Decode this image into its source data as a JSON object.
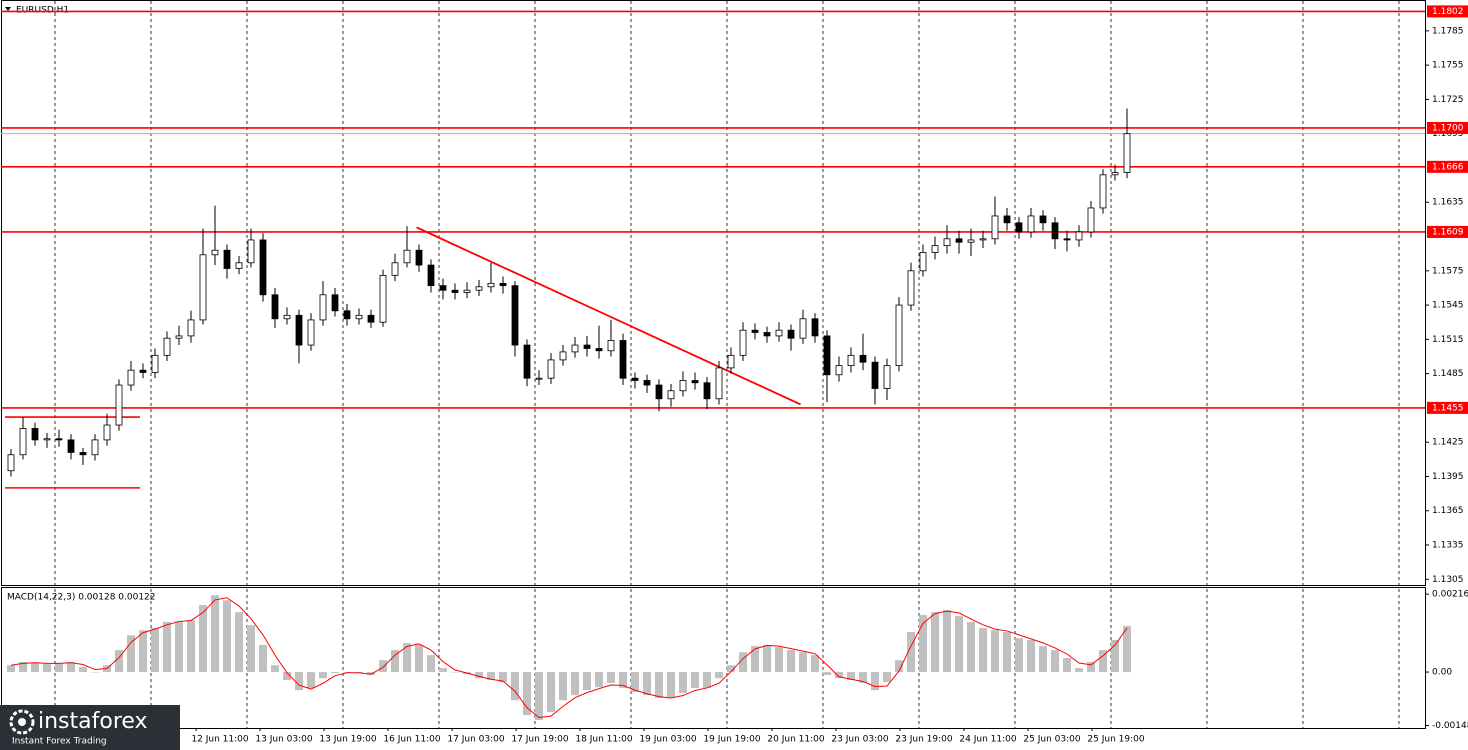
{
  "chart_data": [
    {
      "type": "candlestick",
      "title": "EURUSD,H1",
      "candle_color": "#000000",
      "up_fill": "#ffffff",
      "down_fill": "#000000",
      "open": [
        1.14,
        1.1414,
        1.1437,
        1.1427,
        1.1428,
        1.1427,
        1.1416,
        1.1414,
        1.1427,
        1.144,
        1.1475,
        1.1488,
        1.1486,
        1.1501,
        1.1516,
        1.1518,
        1.1532,
        1.1589,
        1.1593,
        1.1577,
        1.1582,
        1.1602,
        1.1554,
        1.1533,
        1.1536,
        1.151,
        1.1532,
        1.1554,
        1.154,
        1.1533,
        1.1536,
        1.153,
        1.1571,
        1.1582,
        1.1593,
        1.158,
        1.1562,
        1.1558,
        1.1556,
        1.1558,
        1.1561,
        1.1564,
        1.1562,
        1.151,
        1.1481,
        1.1481,
        1.1497,
        1.1504,
        1.151,
        1.1507,
        1.1505,
        1.1514,
        1.1481,
        1.1479,
        1.1475,
        1.1463,
        1.147,
        1.1479,
        1.1477,
        1.1463,
        1.149,
        1.1501,
        1.1523,
        1.1521,
        1.1518,
        1.1523,
        1.1516,
        1.1533,
        1.1518,
        1.1484,
        1.1492,
        1.1501,
        1.1495,
        1.1472,
        1.1492,
        1.1545,
        1.1575,
        1.1591,
        1.1597,
        1.1603,
        1.16,
        1.1602,
        1.1603,
        1.1623,
        1.1617,
        1.1609,
        1.1623,
        1.1617,
        1.1603,
        1.1602,
        1.1609,
        1.163,
        1.1659,
        1.1661
      ],
      "high": [
        1.1419,
        1.1447,
        1.1442,
        1.1433,
        1.1436,
        1.1432,
        1.142,
        1.1432,
        1.145,
        1.148,
        1.1496,
        1.1494,
        1.1507,
        1.1522,
        1.1527,
        1.154,
        1.1612,
        1.1632,
        1.1598,
        1.1588,
        1.1612,
        1.1608,
        1.156,
        1.1543,
        1.1541,
        1.1538,
        1.1566,
        1.156,
        1.1546,
        1.1542,
        1.1541,
        1.1576,
        1.159,
        1.1614,
        1.1598,
        1.1585,
        1.1568,
        1.1564,
        1.1565,
        1.1567,
        1.1582,
        1.157,
        1.1566,
        1.1515,
        1.1488,
        1.1503,
        1.151,
        1.1517,
        1.1518,
        1.1527,
        1.1532,
        1.152,
        1.1486,
        1.1484,
        1.148,
        1.1476,
        1.1487,
        1.1486,
        1.1482,
        1.1496,
        1.1508,
        1.153,
        1.1529,
        1.1526,
        1.153,
        1.1528,
        1.1541,
        1.1538,
        1.1523,
        1.15,
        1.1508,
        1.152,
        1.15,
        1.1498,
        1.1552,
        1.1582,
        1.1598,
        1.1605,
        1.1615,
        1.161,
        1.1612,
        1.161,
        1.164,
        1.163,
        1.1622,
        1.163,
        1.1628,
        1.1622,
        1.161,
        1.1615,
        1.1636,
        1.1664,
        1.1668,
        1.1717
      ],
      "low": [
        1.1395,
        1.141,
        1.1422,
        1.142,
        1.1421,
        1.141,
        1.1405,
        1.1409,
        1.1422,
        1.1435,
        1.147,
        1.1481,
        1.1481,
        1.1496,
        1.151,
        1.1512,
        1.1528,
        1.158,
        1.1568,
        1.1572,
        1.1578,
        1.1548,
        1.1525,
        1.1528,
        1.1494,
        1.1505,
        1.1527,
        1.1535,
        1.1527,
        1.1528,
        1.1525,
        1.1526,
        1.1566,
        1.1578,
        1.1574,
        1.1556,
        1.155,
        1.155,
        1.1551,
        1.1553,
        1.1556,
        1.1555,
        1.15,
        1.1474,
        1.1475,
        1.1476,
        1.1492,
        1.1499,
        1.15,
        1.1498,
        1.15,
        1.1475,
        1.1472,
        1.1468,
        1.1452,
        1.1456,
        1.1465,
        1.1471,
        1.1454,
        1.1458,
        1.1485,
        1.1496,
        1.1515,
        1.1512,
        1.1513,
        1.1505,
        1.1511,
        1.1512,
        1.146,
        1.1478,
        1.1486,
        1.1488,
        1.1458,
        1.1462,
        1.1487,
        1.154,
        1.157,
        1.1585,
        1.159,
        1.159,
        1.1588,
        1.1595,
        1.1598,
        1.161,
        1.1603,
        1.1604,
        1.161,
        1.1594,
        1.1592,
        1.1596,
        1.1604,
        1.1625,
        1.1654,
        1.1656
      ],
      "close": [
        1.1414,
        1.1437,
        1.1427,
        1.1428,
        1.1427,
        1.1416,
        1.1414,
        1.1427,
        1.144,
        1.1475,
        1.1488,
        1.1486,
        1.1501,
        1.1516,
        1.1518,
        1.1532,
        1.1589,
        1.1593,
        1.1577,
        1.1582,
        1.1602,
        1.1554,
        1.1533,
        1.1536,
        1.151,
        1.1532,
        1.1554,
        1.154,
        1.1533,
        1.1536,
        1.153,
        1.1571,
        1.1582,
        1.1593,
        1.158,
        1.1562,
        1.1558,
        1.1556,
        1.1558,
        1.1561,
        1.1564,
        1.1562,
        1.151,
        1.1481,
        1.1481,
        1.1497,
        1.1504,
        1.151,
        1.1507,
        1.1505,
        1.1514,
        1.1481,
        1.1479,
        1.1475,
        1.1463,
        1.147,
        1.1479,
        1.1477,
        1.1463,
        1.149,
        1.1501,
        1.1523,
        1.1521,
        1.1518,
        1.1523,
        1.1516,
        1.1533,
        1.1518,
        1.1484,
        1.1492,
        1.1501,
        1.1495,
        1.1472,
        1.1492,
        1.1545,
        1.1575,
        1.1591,
        1.1597,
        1.1603,
        1.16,
        1.1602,
        1.1603,
        1.1623,
        1.1617,
        1.1609,
        1.1623,
        1.1617,
        1.1603,
        1.1602,
        1.1609,
        1.163,
        1.1659,
        1.1661,
        1.1695
      ],
      "ylim": [
        1.13,
        1.1812
      ],
      "yticks": [
        1.1305,
        1.1335,
        1.1365,
        1.1395,
        1.1425,
        1.1485,
        1.1515,
        1.1545,
        1.1575,
        1.1635,
        1.1725,
        1.1755,
        1.1785
      ],
      "levels": [
        1.1802,
        {
          "value": 1.17,
          "label": "1.1700"
        },
        1.1666,
        1.1609,
        1.1455
      ],
      "level_color": "#ff0000",
      "last_price": 1.1695,
      "support_lines": [
        1.1447,
        1.1385
      ],
      "trendline": {
        "start": [
          33.8,
          1.1613
        ],
        "end": [
          65.8,
          1.1458
        ]
      },
      "x_labels": [
        "12 Jun 11:00",
        "13 Jun 03:00",
        "13 Jun 19:00",
        "16 Jun 11:00",
        "17 Jun 03:00",
        "17 Jun 19:00",
        "18 Jun 11:00",
        "19 Jun 03:00",
        "19 Jun 19:00",
        "20 Jun 11:00",
        "23 Jun 03:00",
        "23 Jun 19:00",
        "24 Jun 11:00",
        "25 Jun 03:00",
        "25 Jun 19:00"
      ]
    },
    {
      "type": "macd",
      "label": "MACD(14,22,3) 0.00128 0.00122",
      "bar_color": "#c0c0c0",
      "line_color": "#ff0000",
      "macd": [
        0.00019,
        0.00028,
        0.00025,
        0.00022,
        0.00025,
        0.00028,
        0.00014,
        0,
        0.00019,
        0.00061,
        0.00102,
        0.00116,
        0.00122,
        0.00139,
        0.00141,
        0.00144,
        0.00186,
        0.00213,
        0.00199,
        0.00166,
        0.0013,
        0.00075,
        0.00019,
        -0.00022,
        -0.0005,
        -0.00044,
        -0.00017,
        -3e-05,
        0,
        -3e-05,
        -8e-05,
        0.00033,
        0.00061,
        0.0008,
        0.00075,
        0.00047,
        0.00011,
        0,
        -6e-05,
        -0.00017,
        -0.00022,
        -0.00028,
        -0.00078,
        -0.00119,
        -0.00133,
        -0.00111,
        -0.00078,
        -0.00064,
        -0.0005,
        -0.00042,
        -0.0003,
        -0.00044,
        -0.00055,
        -0.00064,
        -0.00072,
        -0.00072,
        -0.00058,
        -0.00044,
        -0.00044,
        -0.00017,
        0.00019,
        0.00055,
        0.00072,
        0.00075,
        0.00069,
        0.00061,
        0.00055,
        0.00047,
        -8e-05,
        -0.00017,
        -0.00022,
        -0.0003,
        -0.0005,
        -0.00028,
        0.00033,
        0.00111,
        0.00158,
        0.00166,
        0.00172,
        0.00155,
        0.00139,
        0.00122,
        0.00116,
        0.00111,
        0.00094,
        0.00089,
        0.00072,
        0.00061,
        0.00039,
        0.00011,
        0.00028,
        0.00061,
        0.00089,
        0.00128
      ],
      "signal": [
        0.00019,
        0.00024,
        0.00026,
        0.00024,
        0.00024,
        0.00026,
        0.00021,
        7e-05,
        0.0001,
        0.0004,
        0.00082,
        0.00109,
        0.00119,
        0.00131,
        0.0014,
        0.00143,
        0.00165,
        0.002,
        0.00206,
        0.00183,
        0.00148,
        0.00103,
        0.00047,
        -2e-05,
        -0.00036,
        -0.00047,
        -0.00031,
        -0.0001,
        -2e-05,
        -2e-05,
        -6e-05,
        0.00013,
        0.00047,
        0.00071,
        0.00078,
        0.00061,
        0.00029,
        6e-05,
        -3e-05,
        -0.00012,
        -0.0002,
        -0.00025,
        -0.00053,
        -0.00099,
        -0.00126,
        -0.00122,
        -0.00095,
        -0.00071,
        -0.00057,
        -0.00046,
        -0.00036,
        -0.00037,
        -0.0005,
        -0.0006,
        -0.00068,
        -0.00072,
        -0.00065,
        -0.00051,
        -0.00044,
        -0.00031,
        1e-05,
        0.00037,
        0.00064,
        0.00074,
        0.00072,
        0.00065,
        0.00058,
        0.00051,
        0.0002,
        -0.00013,
        -0.0002,
        -0.00026,
        -0.0004,
        -0.00039,
        3e-05,
        0.00072,
        0.00135,
        0.00162,
        0.00169,
        0.00164,
        0.00147,
        0.00131,
        0.00119,
        0.00114,
        0.00103,
        0.00092,
        0.00081,
        0.00067,
        0.0005,
        0.00025,
        0.0002,
        0.00045,
        0.00075,
        0.00122
      ],
      "ylim": [
        -0.00155,
        0.00233
      ],
      "yticks": [
        0.00216,
        {
          "value": 0,
          "label": "0.00"
        },
        -0.00148
      ]
    }
  ],
  "watermark": {
    "brand": "instaforex",
    "tagline": "Instant Forex Trading"
  }
}
